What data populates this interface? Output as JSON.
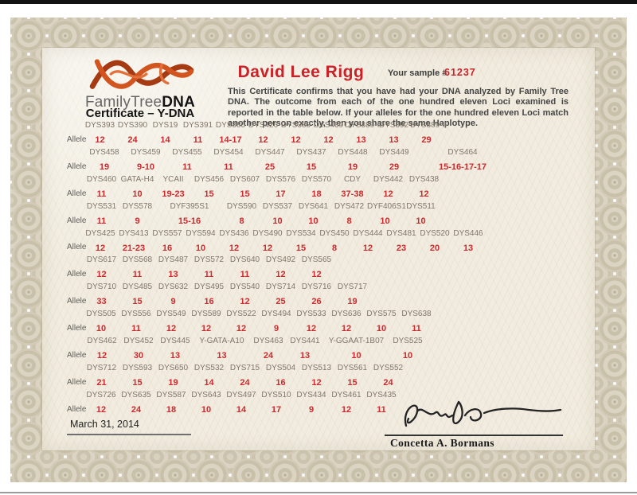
{
  "certificate": {
    "logo": {
      "brand_light": "FamilyTree",
      "brand_bold": "DNA",
      "subtitle": "Certificate – Y-DNA",
      "helix_icon": "dna-helix-icon",
      "helix_color": "#c9491d"
    },
    "recipient_name": "David Lee Rigg",
    "sample": {
      "label": "Your sample #",
      "number": "61237"
    },
    "body_text": "This Certificate confirms that you have had your DNA analyzed by Family Tree DNA. The outcome from each of the one hundred eleven Loci examined is reported in the table below.  If your alleles for the one hundred eleven Loci match another person exactly, then you share the same Haplotype.",
    "allele_row_label": "Allele",
    "issue_date": "March 31, 2014",
    "signatory_name": "Concetta A. Bormans",
    "colors": {
      "value_red": "#cc2a2e",
      "name_red": "#cc2127",
      "marker_gray": "#81766a",
      "paper_cream": "#f1ecdf",
      "border_tan": "#d3cab7"
    }
  },
  "marker_rows": [
    [
      {
        "name": "DYS393",
        "value": "12"
      },
      {
        "name": "DYS390",
        "value": "24"
      },
      {
        "name": "DYS19",
        "value": "14"
      },
      {
        "name": "DYS391",
        "value": "11"
      },
      {
        "name": "DYS385",
        "value": "14-17"
      },
      {
        "name": "DYS426",
        "value": "12"
      },
      {
        "name": "DYS388",
        "value": "12"
      },
      {
        "name": "DYS439",
        "value": "12"
      },
      {
        "name": "DYS389-I",
        "value": "13"
      },
      {
        "name": "DYS392",
        "value": "13"
      },
      {
        "name": "DYS389-II",
        "value": "29"
      }
    ],
    [
      {
        "name": "DYS458",
        "value": "19"
      },
      {
        "name": "DYS459",
        "value": "9-10"
      },
      {
        "name": "DYS455",
        "value": "11"
      },
      {
        "name": "DYS454",
        "value": "11"
      },
      {
        "name": "DYS447",
        "value": "25"
      },
      {
        "name": "DYS437",
        "value": "15"
      },
      {
        "name": "DYS448",
        "value": "19"
      },
      {
        "name": "DYS449",
        "value": "29"
      },
      {
        "name": "DYS464",
        "value": "15-16-17-17"
      }
    ],
    [
      {
        "name": "DYS460",
        "value": "11"
      },
      {
        "name": "GATA-H4",
        "value": "10"
      },
      {
        "name": "YCAII",
        "value": "19-23"
      },
      {
        "name": "DYS456",
        "value": "15"
      },
      {
        "name": "DYS607",
        "value": "15"
      },
      {
        "name": "DYS576",
        "value": "17"
      },
      {
        "name": "DYS570",
        "value": "18"
      },
      {
        "name": "CDY",
        "value": "37-38"
      },
      {
        "name": "DYS442",
        "value": "12"
      },
      {
        "name": "DYS438",
        "value": "12"
      }
    ],
    [
      {
        "name": "DYS531",
        "value": "11"
      },
      {
        "name": "DYS578",
        "value": "9"
      },
      {
        "name": "DYF395S1",
        "value": "15-16"
      },
      {
        "name": "DYS590",
        "value": "8"
      },
      {
        "name": "DYS537",
        "value": "10"
      },
      {
        "name": "DYS641",
        "value": "10"
      },
      {
        "name": "DYS472",
        "value": "8"
      },
      {
        "name": "DYF406S1",
        "value": "10"
      },
      {
        "name": "DYS511",
        "value": "10"
      }
    ],
    [
      {
        "name": "DYS425",
        "value": "12"
      },
      {
        "name": "DYS413",
        "value": "21-23"
      },
      {
        "name": "DYS557",
        "value": "16"
      },
      {
        "name": "DYS594",
        "value": "10"
      },
      {
        "name": "DYS436",
        "value": "12"
      },
      {
        "name": "DYS490",
        "value": "12"
      },
      {
        "name": "DYS534",
        "value": "15"
      },
      {
        "name": "DYS450",
        "value": "8"
      },
      {
        "name": "DYS444",
        "value": "12"
      },
      {
        "name": "DYS481",
        "value": "23"
      },
      {
        "name": "DYS520",
        "value": "20"
      },
      {
        "name": "DYS446",
        "value": "13"
      }
    ],
    [
      {
        "name": "DYS617",
        "value": "12"
      },
      {
        "name": "DYS568",
        "value": "11"
      },
      {
        "name": "DYS487",
        "value": "13"
      },
      {
        "name": "DYS572",
        "value": "11"
      },
      {
        "name": "DYS640",
        "value": "11"
      },
      {
        "name": "DYS492",
        "value": "12"
      },
      {
        "name": "DYS565",
        "value": "12"
      }
    ],
    [
      {
        "name": "DYS710",
        "value": "33"
      },
      {
        "name": "DYS485",
        "value": "15"
      },
      {
        "name": "DYS632",
        "value": "9"
      },
      {
        "name": "DYS495",
        "value": "16"
      },
      {
        "name": "DYS540",
        "value": "12"
      },
      {
        "name": "DYS714",
        "value": "25"
      },
      {
        "name": "DYS716",
        "value": "26"
      },
      {
        "name": "DYS717",
        "value": "19"
      }
    ],
    [
      {
        "name": "DYS505",
        "value": "10"
      },
      {
        "name": "DYS556",
        "value": "11"
      },
      {
        "name": "DYS549",
        "value": "12"
      },
      {
        "name": "DYS589",
        "value": "12"
      },
      {
        "name": "DYS522",
        "value": "12"
      },
      {
        "name": "DYS494",
        "value": "9"
      },
      {
        "name": "DYS533",
        "value": "12"
      },
      {
        "name": "DYS636",
        "value": "12"
      },
      {
        "name": "DYS575",
        "value": "10"
      },
      {
        "name": "DYS638",
        "value": "11"
      }
    ],
    [
      {
        "name": "DYS462",
        "value": "12"
      },
      {
        "name": "DYS452",
        "value": "30"
      },
      {
        "name": "DYS445",
        "value": "13"
      },
      {
        "name": "Y-GATA-A10",
        "value": "13"
      },
      {
        "name": "DYS463",
        "value": "24"
      },
      {
        "name": "DYS441",
        "value": "13"
      },
      {
        "name": "Y-GGAAT-1B07",
        "value": "10"
      },
      {
        "name": "DYS525",
        "value": "10"
      }
    ],
    [
      {
        "name": "DYS712",
        "value": "21"
      },
      {
        "name": "DYS593",
        "value": "15"
      },
      {
        "name": "DYS650",
        "value": "19"
      },
      {
        "name": "DYS532",
        "value": "14"
      },
      {
        "name": "DYS715",
        "value": "24"
      },
      {
        "name": "DYS504",
        "value": "16"
      },
      {
        "name": "DYS513",
        "value": "12"
      },
      {
        "name": "DYS561",
        "value": "15"
      },
      {
        "name": "DYS552",
        "value": "24"
      }
    ],
    [
      {
        "name": "DYS726",
        "value": "12"
      },
      {
        "name": "DYS635",
        "value": "24"
      },
      {
        "name": "DYS587",
        "value": "18"
      },
      {
        "name": "DYS643",
        "value": "10"
      },
      {
        "name": "DYS497",
        "value": "14"
      },
      {
        "name": "DYS510",
        "value": "17"
      },
      {
        "name": "DYS434",
        "value": "9"
      },
      {
        "name": "DYS461",
        "value": "12"
      },
      {
        "name": "DYS435",
        "value": "11"
      }
    ]
  ]
}
